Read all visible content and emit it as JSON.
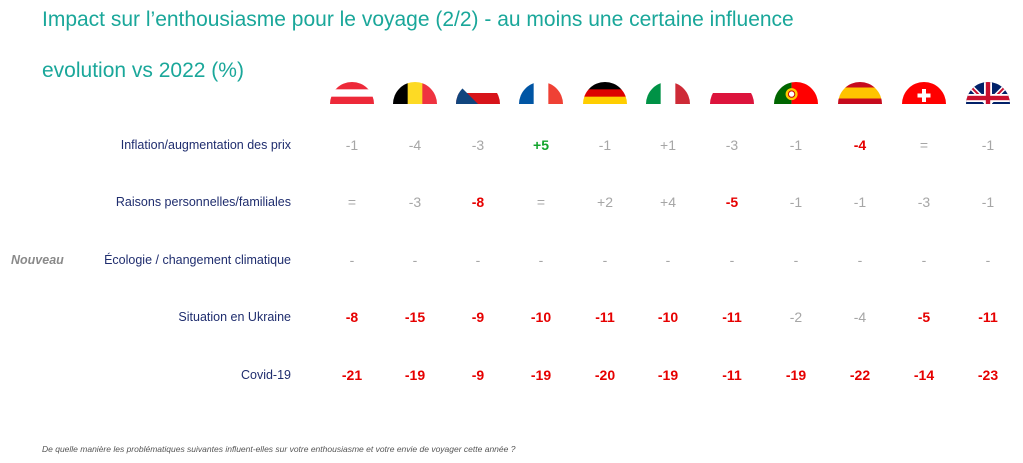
{
  "title_line1": "Impact sur l’enthousiasme pour le voyage (2/2) - au moins une certaine influence",
  "title_line2": "evolution vs 2022 (%)",
  "new_tag": "Nouveau",
  "footnote": "De quelle manière les problématiques suivantes influent-elles sur votre enthousiasme et votre envie de voyager cette année ?",
  "colors": {
    "title": "#1aa79a",
    "row_label": "#1f2d6e",
    "neutral": "#a6a6a6",
    "negative": "#e60000",
    "positive": "#12a52c"
  },
  "chart_data": {
    "type": "table",
    "columns": [
      {
        "flag": "austria-flag-icon"
      },
      {
        "flag": "belgium-flag-icon"
      },
      {
        "flag": "czech-flag-icon"
      },
      {
        "flag": "france-flag-icon"
      },
      {
        "flag": "germany-flag-icon"
      },
      {
        "flag": "italy-flag-icon"
      },
      {
        "flag": "poland-flag-icon"
      },
      {
        "flag": "portugal-flag-icon"
      },
      {
        "flag": "spain-flag-icon"
      },
      {
        "flag": "switzerland-flag-icon"
      },
      {
        "flag": "uk-flag-icon"
      }
    ],
    "rows": [
      {
        "label": "Inflation/augmentation des prix",
        "values": [
          "-1",
          "-4",
          "-3",
          "+5",
          "-1",
          "+1",
          "-3",
          "-1",
          "-4",
          "=",
          "-1"
        ],
        "highlight": [
          "n",
          "n",
          "n",
          "pos",
          "n",
          "n",
          "n",
          "n",
          "neg",
          "n",
          "n"
        ]
      },
      {
        "label": "Raisons personnelles/familiales",
        "values": [
          "=",
          "-3",
          "-8",
          "=",
          "+2",
          "+4",
          "-5",
          "-1",
          "-1",
          "-3",
          "-1"
        ],
        "highlight": [
          "n",
          "n",
          "neg",
          "n",
          "n",
          "n",
          "neg",
          "n",
          "n",
          "n",
          "n"
        ]
      },
      {
        "label": "Écologie / changement climatique",
        "is_new": true,
        "values": [
          "-",
          "-",
          "-",
          "-",
          "-",
          "-",
          "-",
          "-",
          "-",
          "-",
          "-"
        ],
        "highlight": [
          "n",
          "n",
          "n",
          "n",
          "n",
          "n",
          "n",
          "n",
          "n",
          "n",
          "n"
        ]
      },
      {
        "label": "Situation en Ukraine",
        "values": [
          "-8",
          "-15",
          "-9",
          "-10",
          "-11",
          "-10",
          "-11",
          "-2",
          "-4",
          "-5",
          "-11"
        ],
        "highlight": [
          "neg",
          "neg",
          "neg",
          "neg",
          "neg",
          "neg",
          "neg",
          "n",
          "n",
          "neg",
          "neg"
        ]
      },
      {
        "label": "Covid-19",
        "values": [
          "-21",
          "-19",
          "-9",
          "-19",
          "-20",
          "-19",
          "-11",
          "-19",
          "-22",
          "-14",
          "-23"
        ],
        "highlight": [
          "neg",
          "neg",
          "neg",
          "neg",
          "neg",
          "neg",
          "neg",
          "neg",
          "neg",
          "neg",
          "neg"
        ]
      }
    ]
  }
}
